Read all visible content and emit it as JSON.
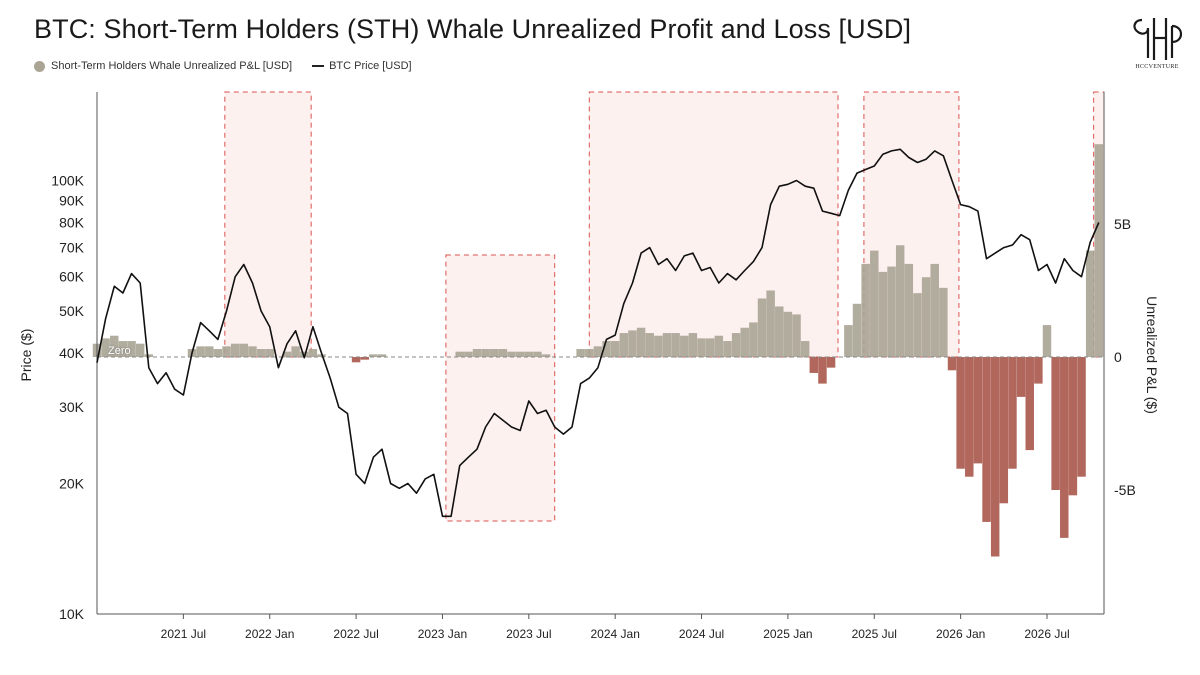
{
  "title": "BTC: Short-Term Holders (STH) Whale Unrealized Profit and Loss [USD]",
  "legend": {
    "pnl_label": "Short-Term Holders Whale Unrealized P&L [USD]",
    "price_label": "BTC Price [USD]"
  },
  "logo_text": "HCCVENTURE",
  "zero_label": "Zero",
  "colors": {
    "profit": "#a9a494",
    "loss": "#a8574a",
    "price": "#111111",
    "box_border": "#d9534f",
    "box_fill": "#fdf1f0"
  },
  "chart_data": {
    "type": "line",
    "title": "BTC: Short-Term Holders (STH) Whale Unrealized Profit and Loss [USD]",
    "y_left_label": "Price ($)",
    "y_right_label": "Unrealized P&L ($)",
    "y_left_scale": "log",
    "y_left_ticks": [
      "100K",
      "90K",
      "80K",
      "70K",
      "60K",
      "50K",
      "40K",
      "30K",
      "20K",
      "10K"
    ],
    "y_left_tick_values": [
      100000,
      90000,
      80000,
      70000,
      60000,
      50000,
      40000,
      30000,
      20000,
      10000
    ],
    "y_right_ticks": [
      "5B",
      "0",
      "-5B"
    ],
    "y_right_tick_values": [
      5,
      0,
      -5
    ],
    "y_right_unit": "billion USD",
    "x_ticks": [
      "2021 Jul",
      "2022 Jan",
      "2022 Jul",
      "2023 Jan",
      "2023 Jul",
      "2024 Jan",
      "2024 Jul",
      "2025 Jan",
      "2025 Jul",
      "2026 Jan",
      "2026 Jul"
    ],
    "x_range": [
      2021.0,
      2026.83
    ],
    "highlight_periods": [
      [
        2021.74,
        2022.24
      ],
      [
        2023.02,
        2023.65
      ],
      [
        2023.85,
        2025.29
      ],
      [
        2025.44,
        2025.99
      ],
      [
        2026.77,
        2026.83
      ]
    ],
    "series": [
      {
        "name": "BTC Price [USD]",
        "kind": "price",
        "x": [
          2021.0,
          2021.05,
          2021.1,
          2021.15,
          2021.2,
          2021.25,
          2021.3,
          2021.35,
          2021.4,
          2021.45,
          2021.5,
          2021.55,
          2021.6,
          2021.65,
          2021.7,
          2021.75,
          2021.8,
          2021.85,
          2021.9,
          2021.95,
          2022.0,
          2022.05,
          2022.1,
          2022.15,
          2022.2,
          2022.25,
          2022.3,
          2022.35,
          2022.4,
          2022.45,
          2022.5,
          2022.55,
          2022.6,
          2022.65,
          2022.7,
          2022.75,
          2022.8,
          2022.85,
          2022.9,
          2022.95,
          2023.0,
          2023.05,
          2023.1,
          2023.15,
          2023.2,
          2023.25,
          2023.3,
          2023.35,
          2023.4,
          2023.45,
          2023.5,
          2023.55,
          2023.6,
          2023.65,
          2023.7,
          2023.75,
          2023.8,
          2023.85,
          2023.9,
          2023.95,
          2024.0,
          2024.05,
          2024.1,
          2024.15,
          2024.2,
          2024.25,
          2024.3,
          2024.35,
          2024.4,
          2024.45,
          2024.5,
          2024.55,
          2024.6,
          2024.65,
          2024.7,
          2024.75,
          2024.8,
          2024.85,
          2024.9,
          2024.95,
          2025.0,
          2025.05,
          2025.1,
          2025.15,
          2025.2,
          2025.25,
          2025.3,
          2025.35,
          2025.4,
          2025.45,
          2025.5,
          2025.55,
          2025.6,
          2025.65,
          2025.7,
          2025.75,
          2025.8,
          2025.85,
          2025.9,
          2025.95,
          2026.0,
          2026.05,
          2026.1,
          2026.15,
          2026.2,
          2026.25,
          2026.3,
          2026.35,
          2026.4,
          2026.45,
          2026.5,
          2026.55,
          2026.6,
          2026.65,
          2026.7,
          2026.75,
          2026.8
        ],
        "values": [
          38000,
          48000,
          57000,
          55000,
          61000,
          58000,
          37000,
          34000,
          36000,
          33000,
          32000,
          40000,
          47000,
          45000,
          43000,
          50000,
          60000,
          64000,
          58000,
          50000,
          46000,
          37000,
          42000,
          45000,
          39000,
          46000,
          40000,
          35000,
          30000,
          29000,
          21000,
          20000,
          23000,
          24000,
          20000,
          19500,
          20000,
          19000,
          20500,
          21000,
          16800,
          16800,
          22000,
          23000,
          24000,
          27000,
          29000,
          28000,
          27000,
          26500,
          31000,
          29000,
          29500,
          27000,
          26000,
          27000,
          34000,
          35000,
          37000,
          43000,
          44000,
          52000,
          58000,
          68000,
          70000,
          64000,
          66000,
          62000,
          67000,
          68000,
          62000,
          63000,
          58000,
          61000,
          59000,
          62000,
          65000,
          70000,
          88000,
          97000,
          98000,
          100000,
          97000,
          96000,
          85000,
          84000,
          83000,
          95000,
          104000,
          106000,
          108000,
          115000,
          117000,
          118000,
          113000,
          110000,
          112000,
          117000,
          114000,
          100000,
          88000,
          87000,
          85000,
          66000,
          68000,
          70000,
          71000,
          75000,
          73000,
          62000,
          64000,
          58000,
          66000,
          62000,
          60000,
          72000,
          80000
        ]
      },
      {
        "name": "Short-Term Holders Whale Unrealized P&L [USD]",
        "kind": "pnl",
        "unit": "billion USD",
        "x": [
          2021.0,
          2021.05,
          2021.1,
          2021.15,
          2021.2,
          2021.25,
          2021.3,
          2021.35,
          2021.4,
          2021.45,
          2021.5,
          2021.55,
          2021.6,
          2021.65,
          2021.7,
          2021.75,
          2021.8,
          2021.85,
          2021.9,
          2021.95,
          2022.0,
          2022.05,
          2022.1,
          2022.15,
          2022.2,
          2022.25,
          2022.3,
          2022.35,
          2022.4,
          2022.45,
          2022.5,
          2022.55,
          2022.6,
          2022.65,
          2022.7,
          2022.75,
          2022.8,
          2022.85,
          2022.9,
          2022.95,
          2023.0,
          2023.05,
          2023.1,
          2023.15,
          2023.2,
          2023.25,
          2023.3,
          2023.35,
          2023.4,
          2023.45,
          2023.5,
          2023.55,
          2023.6,
          2023.65,
          2023.7,
          2023.75,
          2023.8,
          2023.85,
          2023.9,
          2023.95,
          2024.0,
          2024.05,
          2024.1,
          2024.15,
          2024.2,
          2024.25,
          2024.3,
          2024.35,
          2024.4,
          2024.45,
          2024.5,
          2024.55,
          2024.6,
          2024.65,
          2024.7,
          2024.75,
          2024.8,
          2024.85,
          2024.9,
          2024.95,
          2025.0,
          2025.05,
          2025.1,
          2025.15,
          2025.2,
          2025.25,
          2025.3,
          2025.35,
          2025.4,
          2025.45,
          2025.5,
          2025.55,
          2025.6,
          2025.65,
          2025.7,
          2025.75,
          2025.8,
          2025.85,
          2025.9,
          2025.95,
          2026.0,
          2026.05,
          2026.1,
          2026.15,
          2026.2,
          2026.25,
          2026.3,
          2026.35,
          2026.4,
          2026.45,
          2026.5,
          2026.55,
          2026.6,
          2026.65,
          2026.7,
          2026.75,
          2026.8
        ],
        "values": [
          0.5,
          0.7,
          0.8,
          0.6,
          0.6,
          0.5,
          0.1,
          0,
          0,
          0,
          0,
          0.3,
          0.4,
          0.4,
          0.3,
          0.4,
          0.5,
          0.5,
          0.4,
          0.3,
          0.3,
          0,
          0.2,
          0.4,
          0.2,
          0.3,
          0.1,
          0,
          0,
          0,
          -0.2,
          -0.1,
          0.1,
          0.1,
          0,
          0,
          0,
          0,
          0,
          0,
          0,
          0,
          0.2,
          0.2,
          0.3,
          0.3,
          0.3,
          0.3,
          0.2,
          0.2,
          0.2,
          0.2,
          0.1,
          0,
          0,
          0,
          0.3,
          0.3,
          0.4,
          0.6,
          0.6,
          0.9,
          1.0,
          1.1,
          0.9,
          0.8,
          0.9,
          0.9,
          0.8,
          0.9,
          0.7,
          0.7,
          0.8,
          0.6,
          0.9,
          1.1,
          1.3,
          2.2,
          2.5,
          1.9,
          1.7,
          1.6,
          0.6,
          -0.6,
          -1.0,
          -0.4,
          0,
          1.2,
          2.0,
          3.5,
          4.0,
          3.2,
          3.4,
          4.2,
          3.5,
          2.4,
          3.0,
          3.5,
          2.6,
          -0.5,
          -4.2,
          -4.5,
          -4.0,
          -6.2,
          -7.5,
          -5.5,
          -4.2,
          -1.5,
          -3.5,
          -1.0,
          1.2,
          -5.0,
          -6.8,
          -5.2,
          -4.5,
          4.0,
          8.0
        ]
      }
    ]
  }
}
